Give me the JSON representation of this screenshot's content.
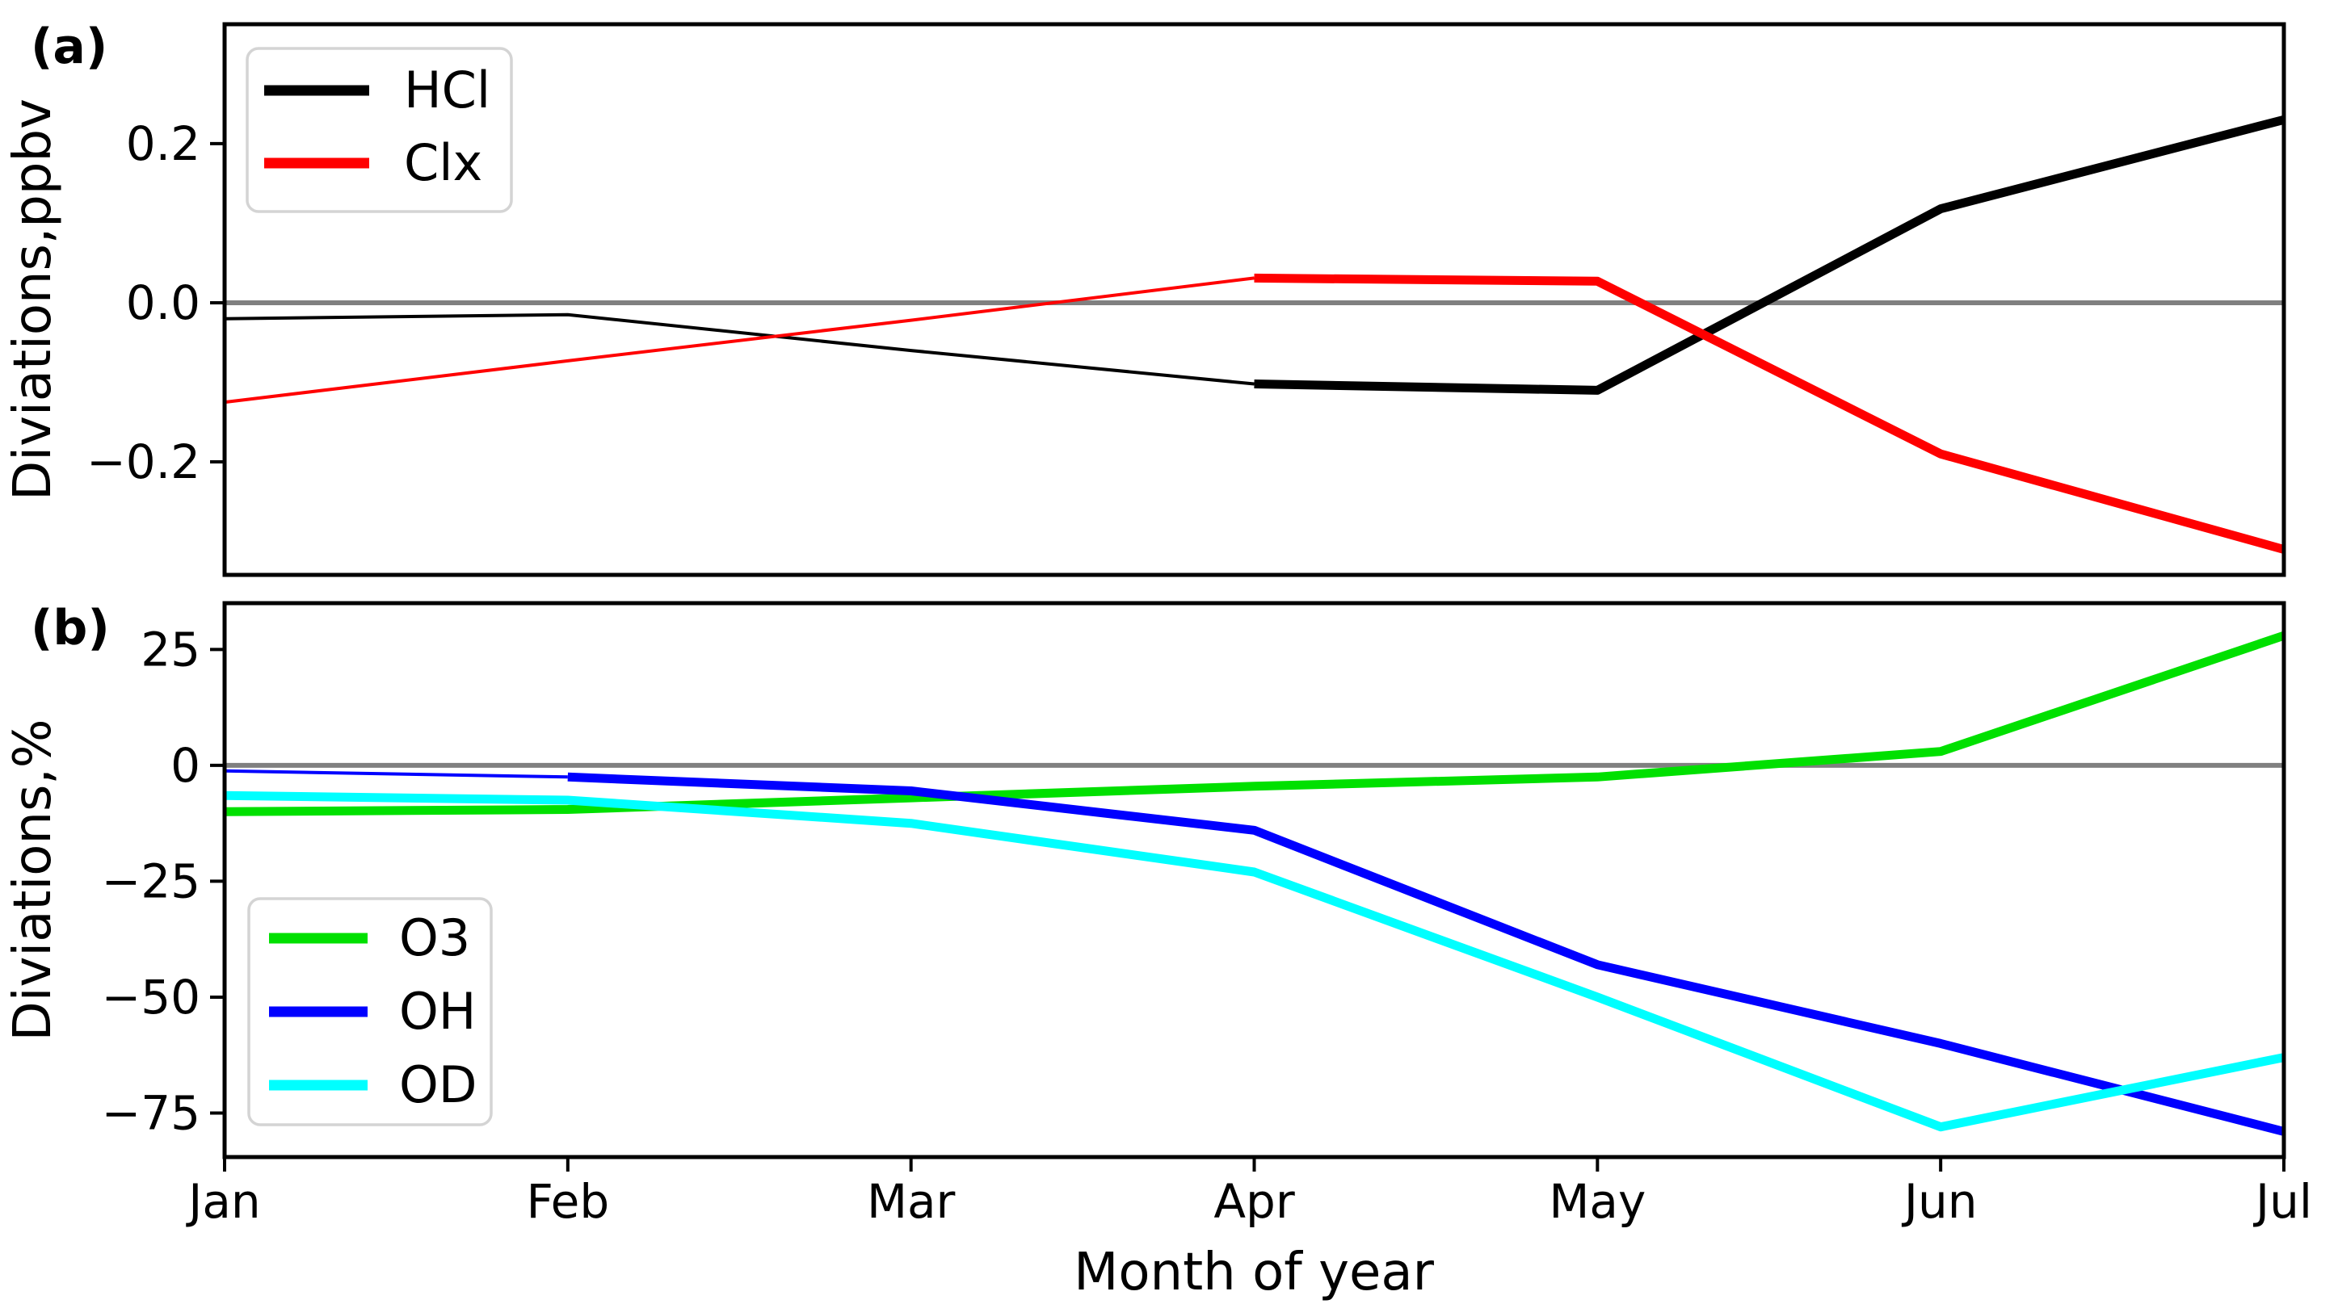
{
  "figure": {
    "xlabel": "Month of year",
    "panel_a_tag": "(a)",
    "panel_b_tag": "(b)",
    "background": "#ffffff",
    "zero_line_color": "#808080",
    "frame_color": "#000000",
    "legend_border_color": "#d4d4d4"
  },
  "chart_data": [
    {
      "type": "line",
      "panel": "a",
      "ylabel": "Diviations,ppbv",
      "categories": [
        "Jan",
        "Feb",
        "Mar",
        "Apr",
        "May",
        "Jun",
        "Jul"
      ],
      "show_x_tick_labels": false,
      "ylim": [
        -0.342,
        0.35
      ],
      "yticks": [
        0.2,
        0.0,
        -0.2
      ],
      "ytick_labels": [
        "0.2",
        "0.0",
        "−0.2"
      ],
      "grid": false,
      "zero_line": true,
      "legend_position": "upper-left",
      "series": [
        {
          "name": "HCl",
          "color": "#000000",
          "values": [
            -0.02,
            -0.015,
            -0.06,
            -0.102,
            -0.11,
            0.118,
            0.23
          ],
          "thin_until_index": 3
        },
        {
          "name": "Clx",
          "color": "#ff0000",
          "values": [
            -0.125,
            -0.073,
            -0.022,
            0.031,
            0.027,
            -0.19,
            -0.31
          ],
          "thin_until_index": 3
        }
      ]
    },
    {
      "type": "line",
      "panel": "b",
      "ylabel": "Diviations,%",
      "categories": [
        "Jan",
        "Feb",
        "Mar",
        "Apr",
        "May",
        "Jun",
        "Jul"
      ],
      "show_x_tick_labels": true,
      "ylim": [
        -84.5,
        35
      ],
      "yticks": [
        25,
        0,
        -25,
        -50,
        -75
      ],
      "ytick_labels": [
        "25",
        "0",
        "−25",
        "−50",
        "−75"
      ],
      "grid": false,
      "zero_line": true,
      "legend_position": "lower-left",
      "series": [
        {
          "name": "O3",
          "color": "#00e000",
          "values": [
            -10,
            -9.5,
            -7,
            -4.5,
            -2.5,
            3,
            28
          ],
          "thin_until_index": 0
        },
        {
          "name": "OH",
          "color": "#0000ff",
          "values": [
            -1.2,
            -2.5,
            -5.5,
            -14,
            -43,
            -60,
            -79
          ],
          "thin_until_index": 1
        },
        {
          "name": "OD",
          "color": "#00ffff",
          "values": [
            -6.5,
            -7.5,
            -12.5,
            -23,
            -50,
            -78,
            -63
          ],
          "thin_until_index": 0
        }
      ]
    }
  ]
}
